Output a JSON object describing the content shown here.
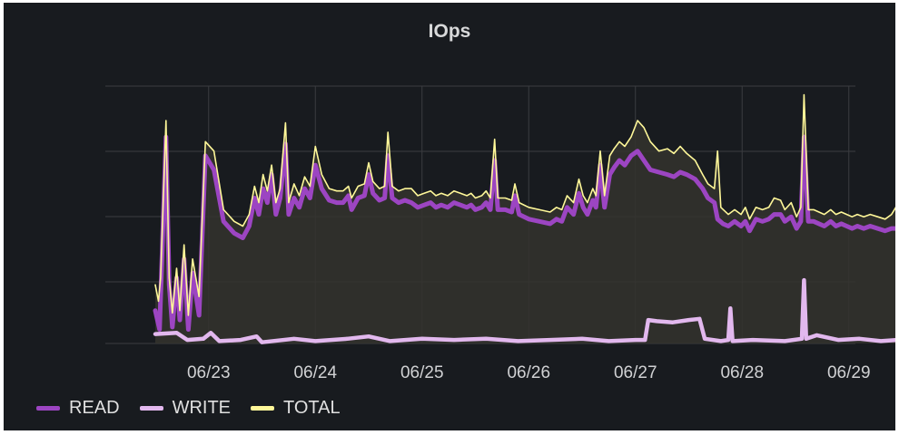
{
  "panel": {
    "title": "IOps"
  },
  "colors": {
    "background": "#181b1f",
    "grid": "#3b3d41",
    "read": "#9c45c2",
    "write": "#e2b8ee",
    "total": "#fff899",
    "fill": "#34332e"
  },
  "chart_data": {
    "type": "line",
    "title": "IOps",
    "xlabel": "",
    "ylabel": "",
    "x_tick_labels": [
      "06/23",
      "06/24",
      "06/25",
      "06/26",
      "06/27",
      "06/28",
      "06/29"
    ],
    "x_domain_days": [
      0,
      7.05
    ],
    "y_ticks_shown": false,
    "grid": true,
    "legend_position": "bottom-left",
    "series": [
      {
        "name": "READ",
        "color": "#9c45c2",
        "points": [
          [
            0,
            0.14
          ],
          [
            0.04,
            0.06
          ],
          [
            0.1,
            0.88
          ],
          [
            0.13,
            0.25
          ],
          [
            0.16,
            0.07
          ],
          [
            0.2,
            0.28
          ],
          [
            0.23,
            0.1
          ],
          [
            0.27,
            0.36
          ],
          [
            0.31,
            0.06
          ],
          [
            0.35,
            0.3
          ],
          [
            0.41,
            0.12
          ],
          [
            0.47,
            0.8
          ],
          [
            0.55,
            0.74
          ],
          [
            0.64,
            0.52
          ],
          [
            0.74,
            0.47
          ],
          [
            0.82,
            0.45
          ],
          [
            0.88,
            0.5
          ],
          [
            0.93,
            0.62
          ],
          [
            0.97,
            0.55
          ],
          [
            1.01,
            0.66
          ],
          [
            1.05,
            0.6
          ],
          [
            1.09,
            0.72
          ],
          [
            1.13,
            0.55
          ],
          [
            1.17,
            0.62
          ],
          [
            1.22,
            0.85
          ],
          [
            1.25,
            0.55
          ],
          [
            1.3,
            0.62
          ],
          [
            1.35,
            0.58
          ],
          [
            1.4,
            0.66
          ],
          [
            1.45,
            0.62
          ],
          [
            1.5,
            0.76
          ],
          [
            1.56,
            0.66
          ],
          [
            1.63,
            0.61
          ],
          [
            1.7,
            0.6
          ],
          [
            1.76,
            0.6
          ],
          [
            1.81,
            0.63
          ],
          [
            1.84,
            0.57
          ],
          [
            1.9,
            0.62
          ],
          [
            1.96,
            0.63
          ],
          [
            2.0,
            0.72
          ],
          [
            2.04,
            0.64
          ],
          [
            2.1,
            0.61
          ],
          [
            2.15,
            0.62
          ],
          [
            2.18,
            0.8
          ],
          [
            2.22,
            0.62
          ],
          [
            2.28,
            0.6
          ],
          [
            2.34,
            0.61
          ],
          [
            2.4,
            0.6
          ],
          [
            2.46,
            0.58
          ],
          [
            2.52,
            0.59
          ],
          [
            2.58,
            0.6
          ],
          [
            2.63,
            0.58
          ],
          [
            2.68,
            0.59
          ],
          [
            2.74,
            0.58
          ],
          [
            2.8,
            0.6
          ],
          [
            2.86,
            0.59
          ],
          [
            2.92,
            0.58
          ],
          [
            2.96,
            0.59
          ],
          [
            3.0,
            0.57
          ],
          [
            3.06,
            0.58
          ],
          [
            3.1,
            0.6
          ],
          [
            3.14,
            0.57
          ],
          [
            3.18,
            0.78
          ],
          [
            3.21,
            0.57
          ],
          [
            3.28,
            0.57
          ],
          [
            3.34,
            0.56
          ],
          [
            3.37,
            0.63
          ],
          [
            3.41,
            0.55
          ],
          [
            3.5,
            0.53
          ],
          [
            3.6,
            0.52
          ],
          [
            3.7,
            0.51
          ],
          [
            3.76,
            0.53
          ],
          [
            3.81,
            0.52
          ],
          [
            3.86,
            0.58
          ],
          [
            3.92,
            0.55
          ],
          [
            3.97,
            0.64
          ],
          [
            4.01,
            0.58
          ],
          [
            4.05,
            0.55
          ],
          [
            4.1,
            0.61
          ],
          [
            4.13,
            0.58
          ],
          [
            4.17,
            0.76
          ],
          [
            4.21,
            0.58
          ],
          [
            4.26,
            0.72
          ],
          [
            4.3,
            0.75
          ],
          [
            4.35,
            0.78
          ],
          [
            4.4,
            0.76
          ],
          [
            4.46,
            0.8
          ],
          [
            4.52,
            0.82
          ],
          [
            4.58,
            0.78
          ],
          [
            4.64,
            0.74
          ],
          [
            4.72,
            0.73
          ],
          [
            4.8,
            0.72
          ],
          [
            4.86,
            0.71
          ],
          [
            4.92,
            0.73
          ],
          [
            4.98,
            0.72
          ],
          [
            5.06,
            0.7
          ],
          [
            5.13,
            0.66
          ],
          [
            5.18,
            0.62
          ],
          [
            5.24,
            0.6
          ],
          [
            5.27,
            0.53
          ],
          [
            5.32,
            0.51
          ],
          [
            5.37,
            0.5
          ],
          [
            5.43,
            0.52
          ],
          [
            5.49,
            0.5
          ],
          [
            5.53,
            0.52
          ],
          [
            5.57,
            0.48
          ],
          [
            5.63,
            0.53
          ],
          [
            5.69,
            0.52
          ],
          [
            5.75,
            0.53
          ],
          [
            5.8,
            0.55
          ],
          [
            5.86,
            0.55
          ],
          [
            5.9,
            0.52
          ],
          [
            5.96,
            0.54
          ],
          [
            6.01,
            0.49
          ],
          [
            6.05,
            0.52
          ],
          [
            6.08,
            0.88
          ],
          [
            6.12,
            0.52
          ],
          [
            6.17,
            0.52
          ],
          [
            6.22,
            0.51
          ],
          [
            6.27,
            0.5
          ],
          [
            6.33,
            0.52
          ],
          [
            6.38,
            0.5
          ],
          [
            6.43,
            0.51
          ],
          [
            6.48,
            0.5
          ],
          [
            6.53,
            0.49
          ],
          [
            6.58,
            0.5
          ],
          [
            6.64,
            0.49
          ],
          [
            6.7,
            0.5
          ],
          [
            6.77,
            0.49
          ],
          [
            6.84,
            0.48
          ],
          [
            6.9,
            0.49
          ],
          [
            6.96,
            0.49
          ],
          [
            6.99,
            0.08
          ],
          [
            7.02,
            0.02
          ]
        ]
      },
      {
        "name": "WRITE",
        "color": "#e2b8ee",
        "points": [
          [
            0,
            0.04
          ],
          [
            0.2,
            0.045
          ],
          [
            0.3,
            0.015
          ],
          [
            0.45,
            0.02
          ],
          [
            0.52,
            0.045
          ],
          [
            0.6,
            0.01
          ],
          [
            0.8,
            0.015
          ],
          [
            0.95,
            0.03
          ],
          [
            1.0,
            0.005
          ],
          [
            1.3,
            0.02
          ],
          [
            1.5,
            0.01
          ],
          [
            1.8,
            0.02
          ],
          [
            2.0,
            0.03
          ],
          [
            2.2,
            0.01
          ],
          [
            2.5,
            0.02
          ],
          [
            2.8,
            0.015
          ],
          [
            3.1,
            0.02
          ],
          [
            3.4,
            0.01
          ],
          [
            3.7,
            0.015
          ],
          [
            4.0,
            0.02
          ],
          [
            4.25,
            0.01
          ],
          [
            4.5,
            0.015
          ],
          [
            4.59,
            0.015
          ],
          [
            4.62,
            0.1
          ],
          [
            4.7,
            0.095
          ],
          [
            4.85,
            0.09
          ],
          [
            5.0,
            0.1
          ],
          [
            5.1,
            0.105
          ],
          [
            5.15,
            0.02
          ],
          [
            5.3,
            0.01
          ],
          [
            5.37,
            0.015
          ],
          [
            5.39,
            0.15
          ],
          [
            5.41,
            0.01
          ],
          [
            5.6,
            0.015
          ],
          [
            5.9,
            0.01
          ],
          [
            6.06,
            0.02
          ],
          [
            6.08,
            0.27
          ],
          [
            6.1,
            0.02
          ],
          [
            6.2,
            0.035
          ],
          [
            6.4,
            0.015
          ],
          [
            6.6,
            0.02
          ],
          [
            6.8,
            0.01
          ],
          [
            6.95,
            0.015
          ],
          [
            7.02,
            0.04
          ]
        ]
      },
      {
        "name": "TOTAL",
        "color": "#fff899",
        "points": [
          [
            0,
            0.25
          ],
          [
            0.03,
            0.18
          ],
          [
            0.05,
            0.28
          ],
          [
            0.1,
            0.95
          ],
          [
            0.13,
            0.28
          ],
          [
            0.16,
            0.13
          ],
          [
            0.2,
            0.32
          ],
          [
            0.23,
            0.14
          ],
          [
            0.27,
            0.42
          ],
          [
            0.31,
            0.12
          ],
          [
            0.35,
            0.36
          ],
          [
            0.41,
            0.2
          ],
          [
            0.47,
            0.86
          ],
          [
            0.55,
            0.82
          ],
          [
            0.64,
            0.57
          ],
          [
            0.74,
            0.52
          ],
          [
            0.82,
            0.5
          ],
          [
            0.88,
            0.55
          ],
          [
            0.93,
            0.67
          ],
          [
            0.97,
            0.6
          ],
          [
            1.01,
            0.72
          ],
          [
            1.05,
            0.65
          ],
          [
            1.09,
            0.76
          ],
          [
            1.13,
            0.6
          ],
          [
            1.17,
            0.66
          ],
          [
            1.22,
            0.94
          ],
          [
            1.25,
            0.6
          ],
          [
            1.3,
            0.68
          ],
          [
            1.35,
            0.63
          ],
          [
            1.4,
            0.71
          ],
          [
            1.45,
            0.67
          ],
          [
            1.5,
            0.84
          ],
          [
            1.56,
            0.72
          ],
          [
            1.63,
            0.66
          ],
          [
            1.7,
            0.65
          ],
          [
            1.76,
            0.65
          ],
          [
            1.81,
            0.67
          ],
          [
            1.84,
            0.62
          ],
          [
            1.9,
            0.67
          ],
          [
            1.96,
            0.68
          ],
          [
            2.0,
            0.77
          ],
          [
            2.04,
            0.69
          ],
          [
            2.1,
            0.66
          ],
          [
            2.15,
            0.67
          ],
          [
            2.18,
            0.9
          ],
          [
            2.22,
            0.67
          ],
          [
            2.28,
            0.65
          ],
          [
            2.34,
            0.66
          ],
          [
            2.4,
            0.66
          ],
          [
            2.46,
            0.63
          ],
          [
            2.52,
            0.64
          ],
          [
            2.58,
            0.65
          ],
          [
            2.63,
            0.63
          ],
          [
            2.68,
            0.64
          ],
          [
            2.74,
            0.63
          ],
          [
            2.8,
            0.65
          ],
          [
            2.86,
            0.64
          ],
          [
            2.92,
            0.63
          ],
          [
            2.96,
            0.64
          ],
          [
            3.0,
            0.62
          ],
          [
            3.06,
            0.63
          ],
          [
            3.1,
            0.65
          ],
          [
            3.14,
            0.62
          ],
          [
            3.18,
            0.87
          ],
          [
            3.21,
            0.62
          ],
          [
            3.28,
            0.62
          ],
          [
            3.34,
            0.61
          ],
          [
            3.37,
            0.68
          ],
          [
            3.41,
            0.6
          ],
          [
            3.5,
            0.58
          ],
          [
            3.6,
            0.57
          ],
          [
            3.7,
            0.56
          ],
          [
            3.76,
            0.58
          ],
          [
            3.81,
            0.57
          ],
          [
            3.86,
            0.63
          ],
          [
            3.92,
            0.6
          ],
          [
            3.97,
            0.7
          ],
          [
            4.01,
            0.63
          ],
          [
            4.05,
            0.6
          ],
          [
            4.1,
            0.66
          ],
          [
            4.13,
            0.63
          ],
          [
            4.17,
            0.82
          ],
          [
            4.21,
            0.63
          ],
          [
            4.26,
            0.8
          ],
          [
            4.3,
            0.83
          ],
          [
            4.35,
            0.86
          ],
          [
            4.4,
            0.84
          ],
          [
            4.46,
            0.88
          ],
          [
            4.52,
            0.95
          ],
          [
            4.58,
            0.92
          ],
          [
            4.64,
            0.86
          ],
          [
            4.72,
            0.82
          ],
          [
            4.8,
            0.83
          ],
          [
            4.86,
            0.81
          ],
          [
            4.92,
            0.84
          ],
          [
            4.98,
            0.81
          ],
          [
            5.06,
            0.78
          ],
          [
            5.13,
            0.72
          ],
          [
            5.18,
            0.68
          ],
          [
            5.24,
            0.66
          ],
          [
            5.27,
            0.82
          ],
          [
            5.3,
            0.58
          ],
          [
            5.37,
            0.55
          ],
          [
            5.43,
            0.57
          ],
          [
            5.49,
            0.55
          ],
          [
            5.53,
            0.58
          ],
          [
            5.57,
            0.53
          ],
          [
            5.63,
            0.58
          ],
          [
            5.69,
            0.57
          ],
          [
            5.75,
            0.58
          ],
          [
            5.8,
            0.62
          ],
          [
            5.86,
            0.61
          ],
          [
            5.9,
            0.57
          ],
          [
            5.96,
            0.6
          ],
          [
            6.01,
            0.54
          ],
          [
            6.05,
            0.58
          ],
          [
            6.08,
            1.06
          ],
          [
            6.12,
            0.57
          ],
          [
            6.17,
            0.57
          ],
          [
            6.22,
            0.56
          ],
          [
            6.27,
            0.55
          ],
          [
            6.33,
            0.57
          ],
          [
            6.38,
            0.55
          ],
          [
            6.43,
            0.56
          ],
          [
            6.48,
            0.55
          ],
          [
            6.53,
            0.54
          ],
          [
            6.58,
            0.55
          ],
          [
            6.64,
            0.54
          ],
          [
            6.7,
            0.55
          ],
          [
            6.77,
            0.54
          ],
          [
            6.84,
            0.53
          ],
          [
            6.9,
            0.55
          ],
          [
            6.94,
            0.58
          ],
          [
            6.96,
            0.53
          ],
          [
            6.99,
            0.12
          ],
          [
            7.02,
            0.04
          ]
        ]
      }
    ]
  }
}
